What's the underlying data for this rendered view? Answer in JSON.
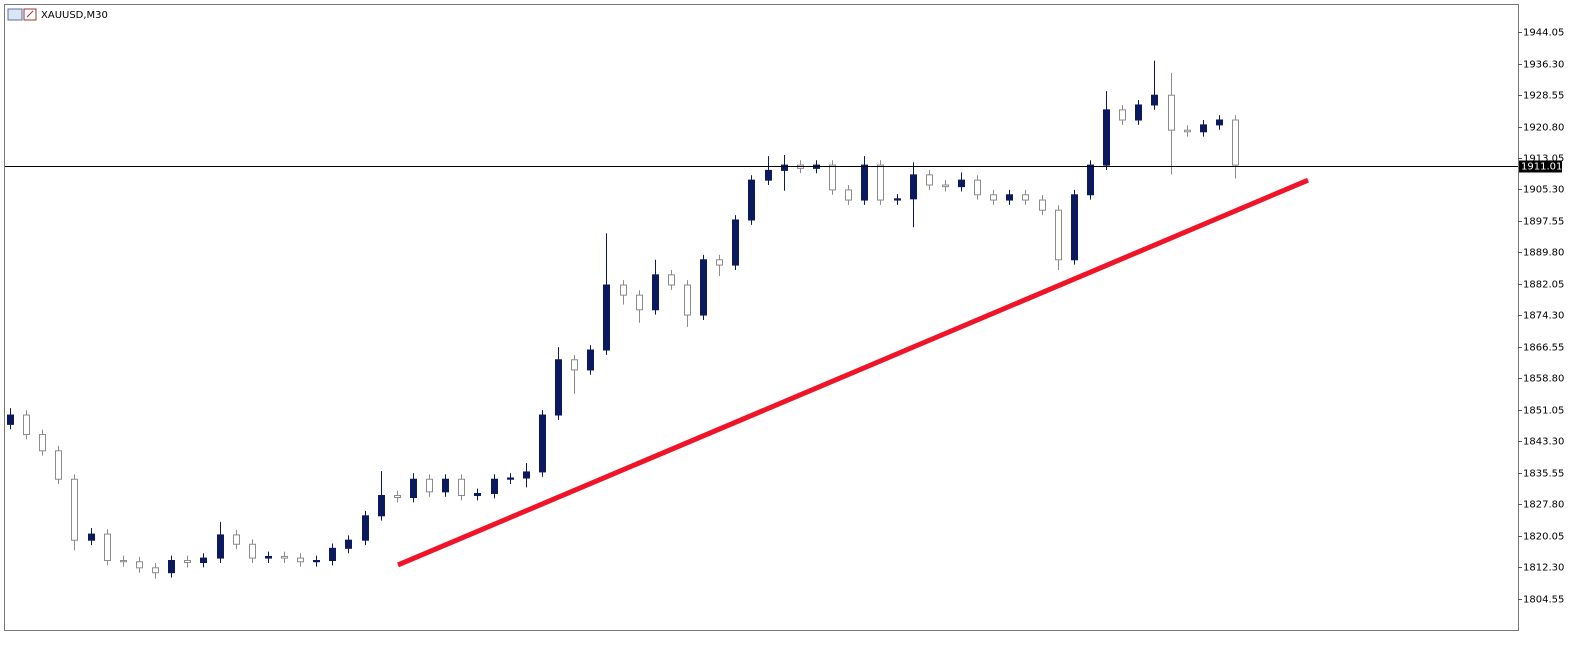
{
  "chart_data": {
    "type": "candlestick",
    "title": "XAUUSD,M30",
    "bull_color": "#0b1a5e",
    "bear_color": "#8c8c8c",
    "open": [
      1847.5,
      1849.8,
      1845.0,
      1841.0,
      1834.0,
      1819.0,
      1820.5,
      1814.0,
      1813.7,
      1812.2,
      1811.0,
      1814.0,
      1813.5,
      1814.6,
      1820.3,
      1818.0,
      1814.6,
      1815.0,
      1814.6,
      1813.7,
      1814.0,
      1817.0,
      1819.0,
      1825.0,
      1830.0,
      1829.5,
      1834.0,
      1830.9,
      1834.0,
      1830.0,
      1830.5,
      1834.0,
      1834.3,
      1835.8,
      1849.8,
      1863.4,
      1860.9,
      1865.8,
      1881.8,
      1879.3,
      1875.7,
      1884.3,
      1881.8,
      1874.4,
      1888.0,
      1886.7,
      1897.8,
      1907.6,
      1910.0,
      1911.3,
      1910.5,
      1911.3,
      1905.2,
      1902.7,
      1911.3,
      1902.7,
      1903.0,
      1908.9,
      1906.4,
      1906.0,
      1907.6,
      1904.0,
      1902.7,
      1904.0,
      1902.7,
      1900.2,
      1888.0,
      1904.0,
      1911.3,
      1924.9,
      1922.4,
      1926.1,
      1928.5,
      1919.9,
      1919.5,
      1921.2,
      1922.4
    ],
    "high": [
      1851.5,
      1851.0,
      1846.2,
      1842.2,
      1835.2,
      1822.0,
      1821.7,
      1815.2,
      1814.9,
      1813.4,
      1815.2,
      1815.2,
      1815.8,
      1823.5,
      1821.5,
      1819.2,
      1816.2,
      1816.2,
      1815.8,
      1815.2,
      1818.2,
      1820.2,
      1826.2,
      1836.0,
      1831.2,
      1835.5,
      1835.2,
      1835.2,
      1835.2,
      1831.7,
      1835.2,
      1835.5,
      1838.0,
      1851.0,
      1866.5,
      1864.6,
      1867.0,
      1894.5,
      1883.0,
      1880.5,
      1888.0,
      1885.5,
      1883.0,
      1889.2,
      1889.2,
      1899.0,
      1908.8,
      1913.5,
      1913.8,
      1912.5,
      1912.5,
      1912.5,
      1906.4,
      1913.5,
      1912.5,
      1904.2,
      1912.0,
      1910.1,
      1907.6,
      1909.5,
      1908.8,
      1905.2,
      1905.2,
      1905.2,
      1903.9,
      1901.4,
      1905.2,
      1912.5,
      1929.5,
      1926.1,
      1927.3,
      1937.0,
      1934.0,
      1921.1,
      1922.4,
      1923.6,
      1923.6
    ],
    "low": [
      1846.3,
      1843.8,
      1839.8,
      1832.8,
      1816.5,
      1817.8,
      1812.8,
      1812.5,
      1811.0,
      1809.5,
      1809.8,
      1812.3,
      1812.3,
      1813.4,
      1816.8,
      1813.4,
      1813.4,
      1813.4,
      1812.5,
      1812.5,
      1812.8,
      1815.8,
      1817.8,
      1823.8,
      1828.3,
      1828.3,
      1829.7,
      1829.7,
      1828.8,
      1828.8,
      1829.3,
      1832.8,
      1832.0,
      1834.6,
      1848.6,
      1855.0,
      1859.7,
      1864.6,
      1877.0,
      1872.5,
      1874.5,
      1880.6,
      1871.5,
      1873.2,
      1884.0,
      1885.5,
      1896.6,
      1906.4,
      1905.0,
      1909.3,
      1909.3,
      1904.0,
      1901.5,
      1901.5,
      1901.5,
      1901.5,
      1896.0,
      1905.2,
      1904.8,
      1904.8,
      1902.8,
      1901.5,
      1901.5,
      1901.5,
      1899.0,
      1885.5,
      1886.8,
      1902.8,
      1910.1,
      1921.2,
      1921.2,
      1924.9,
      1909.0,
      1918.3,
      1918.3,
      1920.0,
      1908.0
    ],
    "close": [
      1849.8,
      1845.0,
      1841.0,
      1834.0,
      1819.0,
      1820.5,
      1814.0,
      1813.7,
      1812.2,
      1811.0,
      1814.0,
      1813.5,
      1814.6,
      1820.3,
      1818.0,
      1814.6,
      1815.0,
      1814.6,
      1813.7,
      1814.0,
      1817.0,
      1819.0,
      1825.0,
      1830.0,
      1829.5,
      1834.0,
      1830.9,
      1834.0,
      1830.0,
      1830.5,
      1834.0,
      1834.3,
      1835.8,
      1849.8,
      1863.4,
      1860.9,
      1865.8,
      1881.8,
      1879.3,
      1875.7,
      1884.3,
      1881.8,
      1874.4,
      1888.0,
      1886.7,
      1897.8,
      1907.6,
      1910.0,
      1911.3,
      1910.5,
      1911.3,
      1905.2,
      1902.7,
      1911.3,
      1902.7,
      1903.0,
      1908.9,
      1906.4,
      1906.0,
      1907.6,
      1904.0,
      1902.7,
      1904.0,
      1902.7,
      1900.2,
      1888.0,
      1904.0,
      1911.3,
      1924.9,
      1922.4,
      1926.1,
      1928.5,
      1919.9,
      1919.5,
      1921.2,
      1922.4,
      1911.3
    ],
    "ylim": [
      1796.9,
      1950.7
    ],
    "yticks": [
      1804.55,
      {
        "value": 1812.3,
        "label": "1812.30"
      },
      1820.05,
      {
        "value": 1827.8,
        "label": "1827.80"
      },
      1835.55,
      {
        "value": 1843.3,
        "label": "1843.30"
      },
      1851.05,
      {
        "value": 1858.8,
        "label": "1858.80"
      },
      1866.55,
      {
        "value": 1874.3,
        "label": "1874.30"
      },
      1882.05,
      {
        "value": 1889.8,
        "label": "1889.80"
      },
      1897.55,
      {
        "value": 1905.3,
        "label": "1905.30"
      },
      1913.05,
      {
        "value": 1920.8,
        "label": "1920.80"
      },
      1928.55,
      {
        "value": 1936.3,
        "label": "1936.30"
      },
      1944.05
    ],
    "current_price": 1911.01,
    "trendline": {
      "color": "#f01428",
      "start": 1812.9,
      "end": 1907.6
    }
  }
}
